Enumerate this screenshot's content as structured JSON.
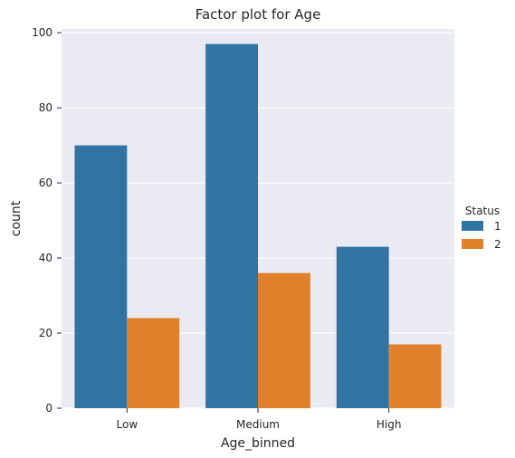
{
  "chart_data": {
    "type": "bar",
    "title": "Factor plot for Age",
    "xlabel": "Age_binned",
    "ylabel": "count",
    "categories": [
      "Low",
      "Medium",
      "High"
    ],
    "series": [
      {
        "name": "1",
        "values": [
          70,
          97,
          43
        ],
        "color": "#3274a1"
      },
      {
        "name": "2",
        "values": [
          24,
          36,
          17
        ],
        "color": "#e1812c"
      }
    ],
    "ylim": [
      0,
      101
    ],
    "yticks": [
      0,
      20,
      40,
      60,
      80,
      100
    ],
    "grid": true,
    "legend": {
      "title": "Status",
      "placement": "right"
    },
    "background": "#eaeaf2"
  }
}
